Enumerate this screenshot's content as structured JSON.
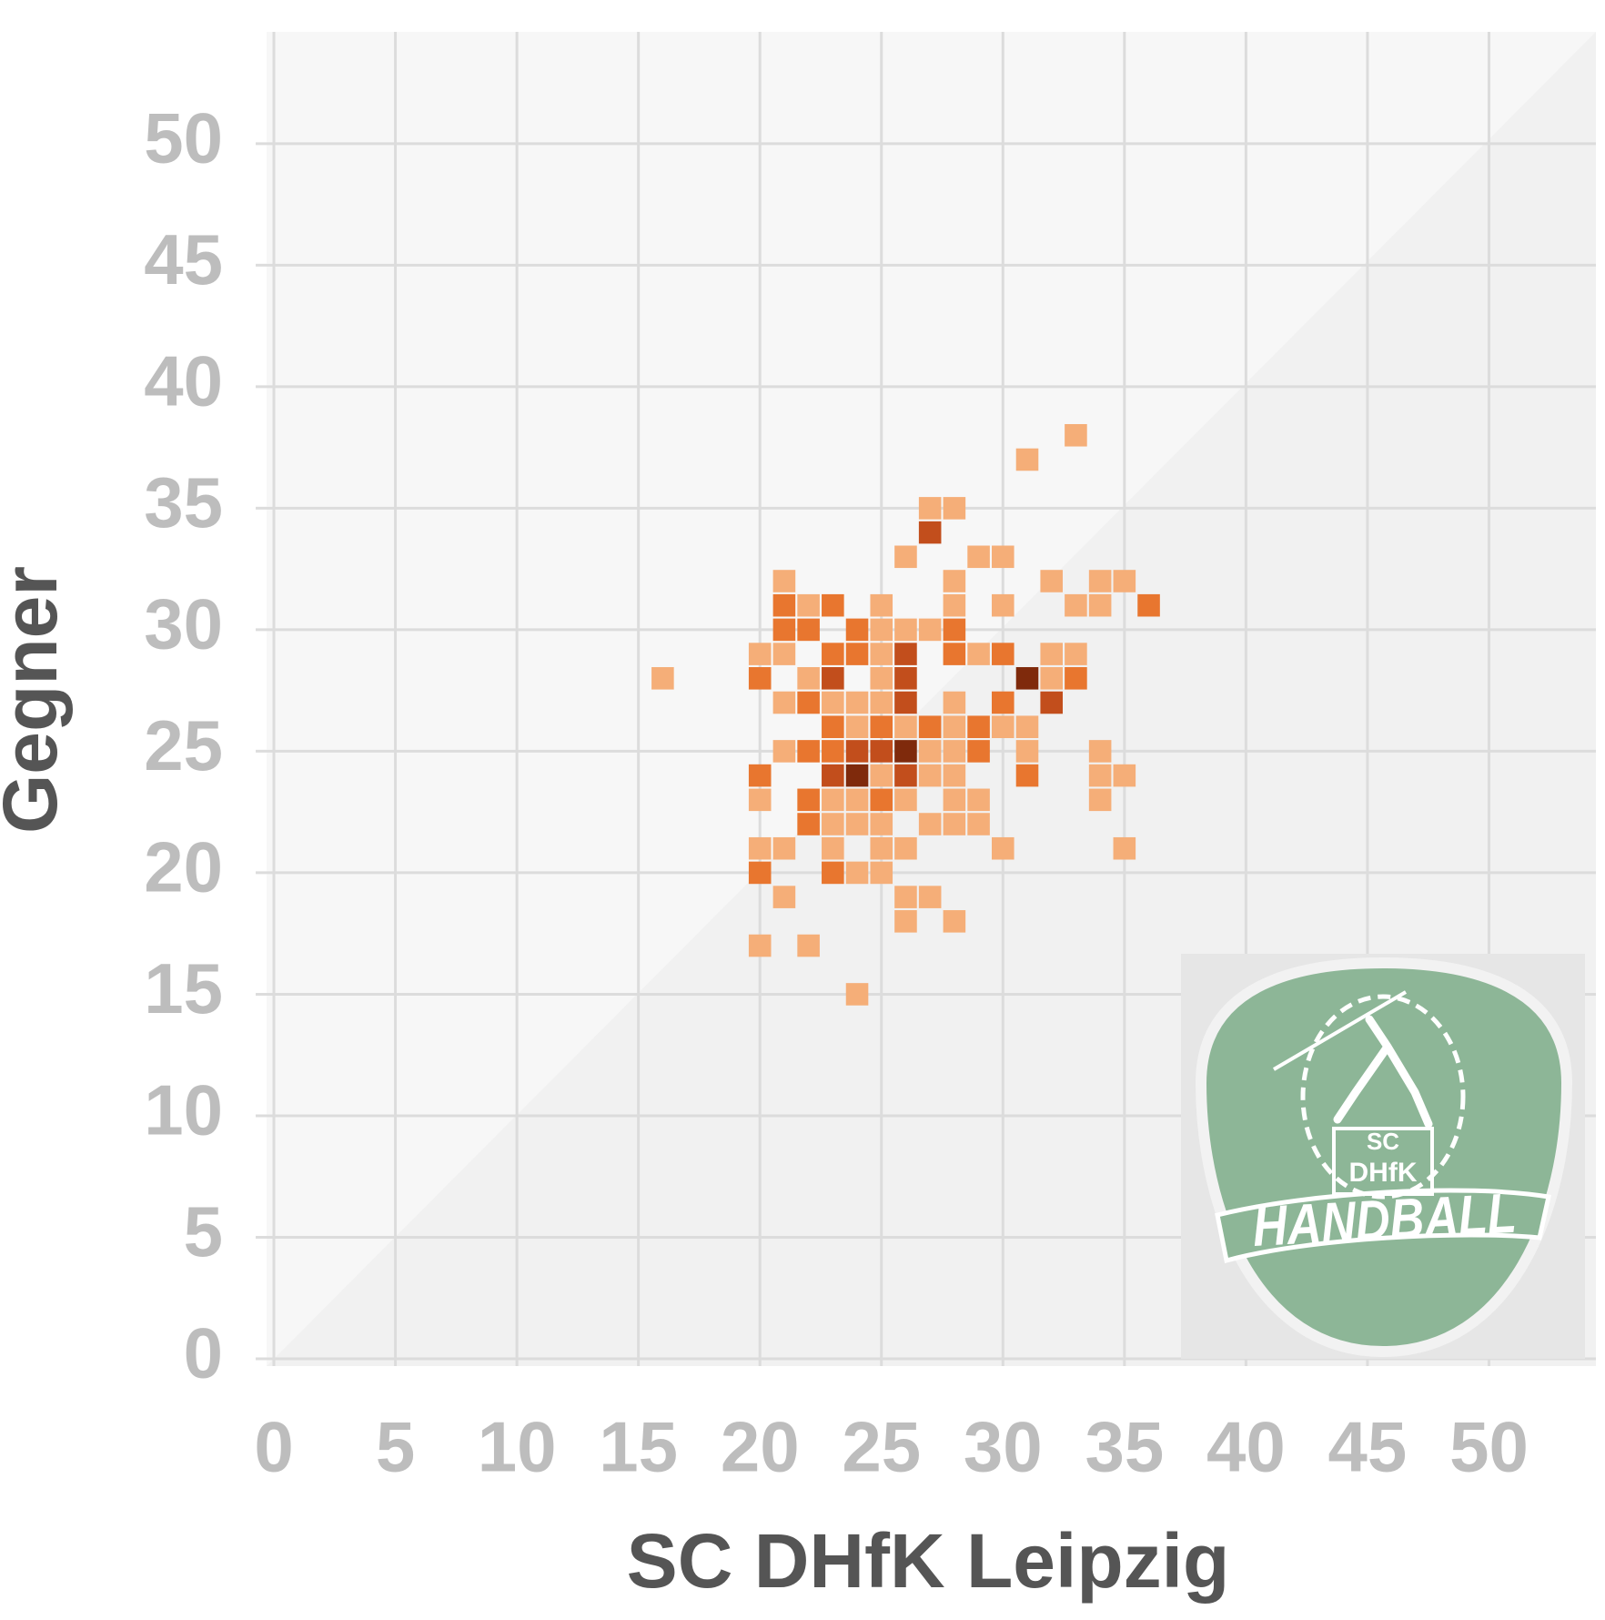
{
  "chart_data": {
    "type": "heatmap",
    "x_label": "SC DHfK Leipzig",
    "y_label": "Gegner",
    "xlim": [
      -0.3,
      54.4
    ],
    "ylim": [
      -0.3,
      54.6
    ],
    "xticks": [
      0,
      5,
      10,
      15,
      20,
      25,
      30,
      35,
      40,
      45,
      50
    ],
    "yticks": [
      0,
      5,
      10,
      15,
      20,
      25,
      30,
      35,
      40,
      45,
      50
    ],
    "grid": true,
    "colors": [
      "#f5ae78",
      "#e8762f",
      "#c24e1c",
      "#7f2a0c"
    ],
    "x": [
      33,
      31,
      27,
      28,
      27,
      26,
      29,
      30,
      21,
      28,
      32,
      34,
      35,
      21,
      22,
      23,
      25,
      28,
      30,
      33,
      34,
      36,
      21,
      22,
      24,
      25,
      26,
      27,
      28,
      20,
      21,
      23,
      24,
      25,
      26,
      28,
      29,
      30,
      32,
      33,
      16,
      20,
      22,
      23,
      25,
      26,
      31,
      32,
      33,
      21,
      22,
      23,
      24,
      25,
      26,
      28,
      30,
      32,
      23,
      24,
      25,
      26,
      27,
      28,
      29,
      30,
      31,
      21,
      22,
      23,
      24,
      25,
      26,
      27,
      28,
      29,
      31,
      34,
      20,
      23,
      24,
      25,
      26,
      27,
      28,
      31,
      34,
      35,
      20,
      22,
      23,
      24,
      25,
      26,
      28,
      29,
      34,
      22,
      23,
      24,
      25,
      27,
      28,
      29,
      20,
      21,
      23,
      25,
      26,
      30,
      35,
      20,
      23,
      24,
      25,
      21,
      26,
      27,
      26,
      28,
      20,
      22,
      24
    ],
    "y": [
      38,
      37,
      35,
      35,
      34,
      33,
      33,
      33,
      32,
      32,
      32,
      32,
      32,
      31,
      31,
      31,
      31,
      31,
      31,
      31,
      31,
      31,
      30,
      30,
      30,
      30,
      30,
      30,
      30,
      29,
      29,
      29,
      29,
      29,
      29,
      29,
      29,
      29,
      29,
      29,
      28,
      28,
      28,
      28,
      28,
      28,
      28,
      28,
      28,
      27,
      27,
      27,
      27,
      27,
      27,
      27,
      27,
      27,
      26,
      26,
      26,
      26,
      26,
      26,
      26,
      26,
      26,
      25,
      25,
      25,
      25,
      25,
      25,
      25,
      25,
      25,
      25,
      25,
      24,
      24,
      24,
      24,
      24,
      24,
      24,
      24,
      24,
      24,
      23,
      23,
      23,
      23,
      23,
      23,
      23,
      23,
      23,
      22,
      22,
      22,
      22,
      22,
      22,
      22,
      21,
      21,
      21,
      21,
      21,
      21,
      21,
      20,
      20,
      20,
      20,
      19,
      19,
      19,
      18,
      18,
      17,
      17,
      15
    ],
    "values": [
      1,
      1,
      1,
      1,
      3,
      1,
      1,
      1,
      1,
      1,
      1,
      1,
      1,
      2,
      1,
      2,
      1,
      1,
      1,
      1,
      1,
      2,
      2,
      2,
      2,
      1,
      1,
      1,
      2,
      1,
      1,
      2,
      2,
      1,
      3,
      2,
      1,
      2,
      1,
      1,
      1,
      2,
      1,
      3,
      1,
      3,
      4,
      1,
      2,
      1,
      2,
      1,
      1,
      1,
      3,
      1,
      2,
      3,
      2,
      1,
      2,
      1,
      2,
      1,
      2,
      1,
      1,
      1,
      2,
      2,
      3,
      3,
      4,
      1,
      1,
      2,
      1,
      1,
      2,
      3,
      4,
      1,
      3,
      1,
      1,
      2,
      1,
      1,
      1,
      2,
      1,
      1,
      2,
      1,
      1,
      1,
      1,
      2,
      1,
      1,
      1,
      1,
      1,
      1,
      1,
      1,
      1,
      1,
      1,
      1,
      1,
      2,
      2,
      1,
      1,
      1,
      1,
      1,
      1,
      1,
      1,
      1,
      1
    ],
    "logo": {
      "line1": "SC",
      "line2": "DHfK",
      "banner": "HANDBALL"
    }
  }
}
